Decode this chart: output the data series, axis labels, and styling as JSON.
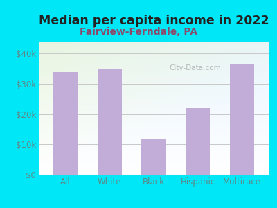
{
  "title": "Median per capita income in 2022",
  "subtitle": "Fairview-Ferndale, PA",
  "categories": [
    "All",
    "White",
    "Black",
    "Hispanic",
    "Multirace"
  ],
  "values": [
    34000,
    35000,
    12000,
    22000,
    36500
  ],
  "bar_color": "#c2acd8",
  "title_fontsize": 12.5,
  "subtitle_fontsize": 10,
  "title_color": "#222222",
  "subtitle_color": "#8B4A6B",
  "tick_color": "#5a8a8a",
  "background_outer": "#00e8f8",
  "ylim": [
    0,
    44000
  ],
  "yticks": [
    0,
    10000,
    20000,
    30000,
    40000
  ],
  "ytick_labels": [
    "$0",
    "$10k",
    "$20k",
    "$30k",
    "$40k"
  ],
  "grid_color": "#c8c8c8",
  "watermark": "City-Data.com"
}
